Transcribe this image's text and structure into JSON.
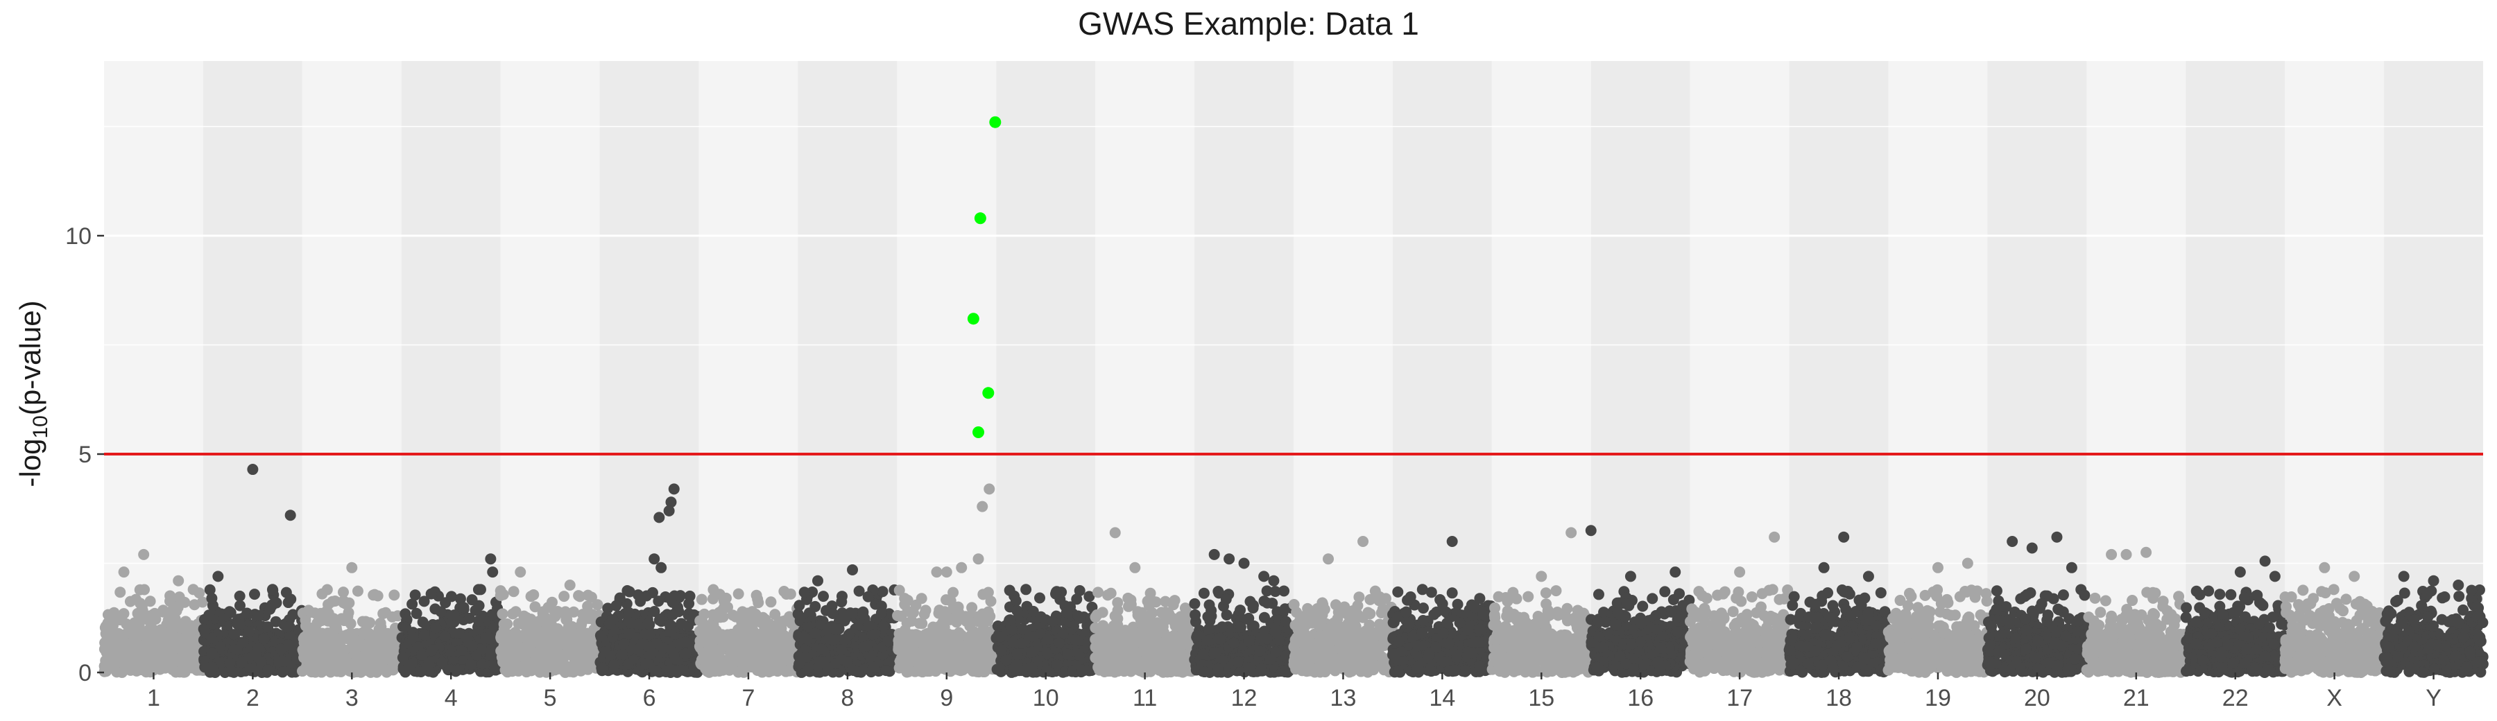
{
  "chart_data": {
    "type": "scatter",
    "title": "GWAS Example: Data 1",
    "ylabel_main": "-log",
    "ylabel_sub": "10",
    "ylabel_tail": "(p-value)",
    "xlabel": "",
    "ylim": [
      0,
      14
    ],
    "yticks": [
      0,
      5,
      10
    ],
    "grid": true,
    "threshold": 5,
    "colors": {
      "threshold": "#e41a1c",
      "highlight": "#00ff00",
      "light": "#a6a6a6",
      "dark": "#474747",
      "panel_light": "#f4f4f4",
      "panel_dark": "#ebebeb",
      "text": "#4d4d4d"
    },
    "chromosomes": [
      {
        "label": "1",
        "tone": "light",
        "x": [
          0,
          1
        ],
        "peaks": [
          [
            0.4,
            2.7
          ],
          [
            0.2,
            2.3
          ],
          [
            0.75,
            2.1
          ],
          [
            0.9,
            1.9
          ]
        ]
      },
      {
        "label": "2",
        "tone": "dark",
        "x": [
          1,
          2
        ],
        "peaks": [
          [
            0.5,
            4.65
          ],
          [
            0.88,
            3.6
          ],
          [
            0.15,
            2.2
          ],
          [
            0.7,
            1.9
          ]
        ]
      },
      {
        "label": "3",
        "tone": "light",
        "x": [
          2,
          3
        ],
        "peaks": [
          [
            0.5,
            2.4
          ],
          [
            0.2,
            1.8
          ]
        ]
      },
      {
        "label": "4",
        "tone": "dark",
        "x": [
          3,
          4
        ],
        "peaks": [
          [
            0.9,
            2.6
          ],
          [
            0.92,
            2.3
          ],
          [
            0.3,
            1.8
          ]
        ]
      },
      {
        "label": "5",
        "tone": "light",
        "x": [
          4,
          5
        ],
        "peaks": [
          [
            0.2,
            2.3
          ],
          [
            0.7,
            2.0
          ]
        ]
      },
      {
        "label": "6",
        "tone": "dark",
        "x": [
          5,
          6
        ],
        "peaks": [
          [
            0.75,
            4.2
          ],
          [
            0.72,
            3.9
          ],
          [
            0.7,
            3.7
          ],
          [
            0.6,
            3.55
          ],
          [
            0.55,
            2.6
          ],
          [
            0.62,
            2.4
          ]
        ]
      },
      {
        "label": "7",
        "tone": "light",
        "x": [
          6,
          7
        ],
        "peaks": [
          [
            0.4,
            1.8
          ],
          [
            0.6,
            1.6
          ]
        ]
      },
      {
        "label": "8",
        "tone": "dark",
        "x": [
          7,
          8
        ],
        "peaks": [
          [
            0.55,
            2.35
          ],
          [
            0.2,
            2.1
          ]
        ]
      },
      {
        "label": "9",
        "tone": "light",
        "x": [
          8,
          9
        ],
        "peaks": [
          [
            0.4,
            2.3
          ],
          [
            0.5,
            2.3
          ],
          [
            0.65,
            2.4
          ],
          [
            0.82,
            2.6
          ],
          [
            0.86,
            3.8
          ],
          [
            0.93,
            4.2
          ]
        ]
      },
      {
        "label": "10",
        "tone": "dark",
        "x": [
          9,
          10
        ],
        "peaks": [
          [
            0.3,
            1.9
          ],
          [
            0.6,
            1.8
          ]
        ]
      },
      {
        "label": "11",
        "tone": "light",
        "x": [
          10,
          11
        ],
        "peaks": [
          [
            0.2,
            3.2
          ],
          [
            0.4,
            2.4
          ]
        ]
      },
      {
        "label": "12",
        "tone": "dark",
        "x": [
          11,
          12
        ],
        "peaks": [
          [
            0.2,
            2.7
          ],
          [
            0.35,
            2.6
          ],
          [
            0.5,
            2.5
          ],
          [
            0.7,
            2.2
          ],
          [
            0.8,
            2.1
          ]
        ]
      },
      {
        "label": "13",
        "tone": "light",
        "x": [
          12,
          13
        ],
        "peaks": [
          [
            0.35,
            2.6
          ],
          [
            0.7,
            3.0
          ]
        ]
      },
      {
        "label": "14",
        "tone": "dark",
        "x": [
          13,
          14
        ],
        "peaks": [
          [
            0.6,
            3.0
          ],
          [
            0.3,
            1.9
          ]
        ]
      },
      {
        "label": "15",
        "tone": "light",
        "x": [
          14,
          15
        ],
        "peaks": [
          [
            0.8,
            3.2
          ],
          [
            0.5,
            2.2
          ]
        ]
      },
      {
        "label": "16",
        "tone": "dark",
        "x": [
          15,
          16
        ],
        "peaks": [
          [
            0.0,
            3.25
          ],
          [
            0.4,
            2.2
          ],
          [
            0.85,
            2.3
          ]
        ]
      },
      {
        "label": "17",
        "tone": "light",
        "x": [
          16,
          17
        ],
        "peaks": [
          [
            0.85,
            3.1
          ],
          [
            0.5,
            2.3
          ]
        ]
      },
      {
        "label": "18",
        "tone": "dark",
        "x": [
          17,
          18
        ],
        "peaks": [
          [
            0.55,
            3.1
          ],
          [
            0.35,
            2.4
          ],
          [
            0.8,
            2.2
          ]
        ]
      },
      {
        "label": "19",
        "tone": "light",
        "x": [
          18,
          19
        ],
        "peaks": [
          [
            0.5,
            2.4
          ],
          [
            0.8,
            2.5
          ]
        ]
      },
      {
        "label": "20",
        "tone": "dark",
        "x": [
          19,
          20
        ],
        "peaks": [
          [
            0.25,
            3.0
          ],
          [
            0.45,
            2.85
          ],
          [
            0.7,
            3.1
          ],
          [
            0.85,
            2.4
          ]
        ]
      },
      {
        "label": "21",
        "tone": "light",
        "x": [
          20,
          21
        ],
        "peaks": [
          [
            0.4,
            2.7
          ],
          [
            0.6,
            2.75
          ],
          [
            0.25,
            2.7
          ]
        ]
      },
      {
        "label": "22",
        "tone": "dark",
        "x": [
          21,
          22
        ],
        "peaks": [
          [
            0.55,
            2.3
          ],
          [
            0.8,
            2.55
          ],
          [
            0.9,
            2.2
          ]
        ]
      },
      {
        "label": "X",
        "tone": "light",
        "x": [
          22,
          23
        ],
        "peaks": [
          [
            0.4,
            2.4
          ],
          [
            0.7,
            2.2
          ]
        ]
      },
      {
        "label": "Y",
        "tone": "dark",
        "x": [
          23,
          24
        ],
        "peaks": [
          [
            0.2,
            2.2
          ],
          [
            0.5,
            2.1
          ],
          [
            0.75,
            2.0
          ]
        ]
      }
    ],
    "highlight_points": [
      {
        "x": 8.82,
        "y": 5.5
      },
      {
        "x": 8.77,
        "y": 8.1
      },
      {
        "x": 8.84,
        "y": 10.4
      },
      {
        "x": 8.92,
        "y": 6.4
      },
      {
        "x": 8.99,
        "y": 12.6
      }
    ]
  }
}
